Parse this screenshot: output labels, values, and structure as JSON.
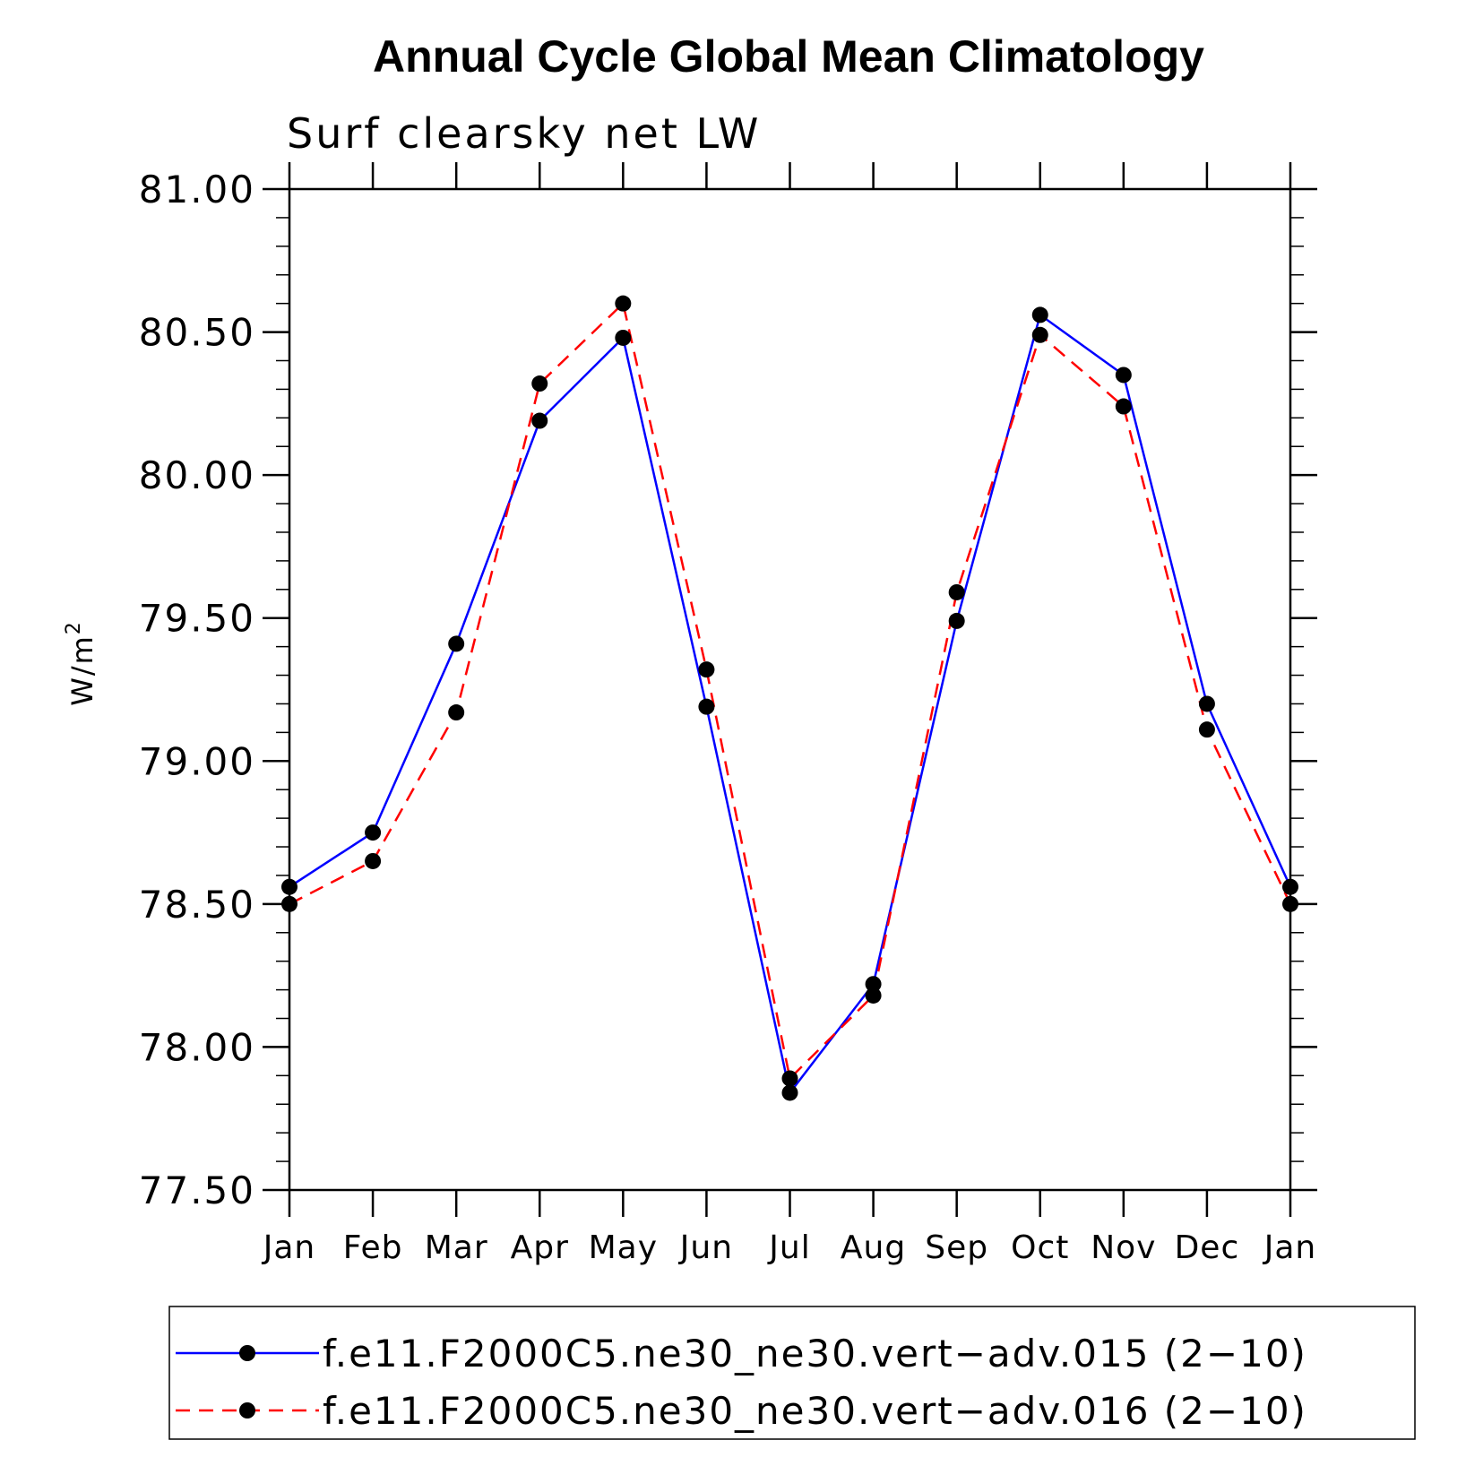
{
  "chart_data": {
    "type": "line",
    "title": "Annual Cycle Global Mean Climatology",
    "subtitle": "Surf clearsky net LW",
    "ylabel": "W/m",
    "ylabel_superscript": "2",
    "xlabel": "",
    "ylim": [
      77.5,
      81.0
    ],
    "categories": [
      "Jan",
      "Feb",
      "Mar",
      "Apr",
      "May",
      "Jun",
      "Jul",
      "Aug",
      "Sep",
      "Oct",
      "Nov",
      "Dec",
      "Jan"
    ],
    "yticks": [
      "77.50",
      "78.00",
      "78.50",
      "79.00",
      "79.50",
      "80.00",
      "80.50",
      "81.00"
    ],
    "series": [
      {
        "name": "f.e11.F2000C5.ne30_ne30.vert−adv.015 (2−10)",
        "color": "#0000ff",
        "dash": "solid",
        "values": [
          78.56,
          78.75,
          79.41,
          80.19,
          80.48,
          79.19,
          77.84,
          78.22,
          79.49,
          80.56,
          80.35,
          79.2,
          78.56
        ]
      },
      {
        "name": "f.e11.F2000C5.ne30_ne30.vert−adv.016 (2−10)",
        "color": "#ff0000",
        "dash": "dashed",
        "values": [
          78.5,
          78.65,
          79.17,
          80.32,
          80.6,
          79.32,
          77.89,
          78.18,
          79.59,
          80.49,
          80.24,
          79.11,
          78.5
        ]
      }
    ],
    "legend_position": "bottom"
  }
}
